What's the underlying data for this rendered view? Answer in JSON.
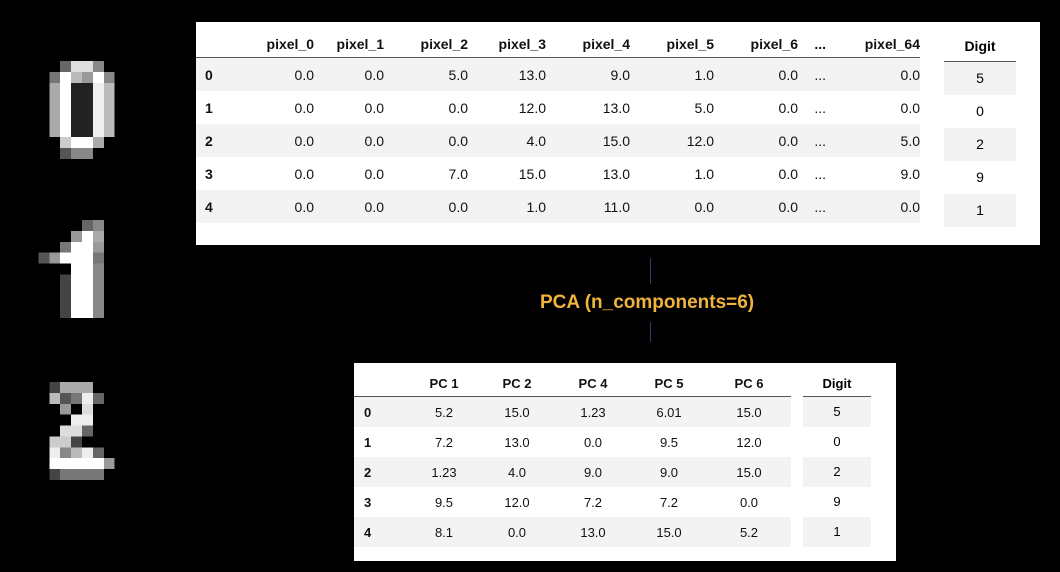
{
  "raw_table": {
    "columns": [
      "pixel_0",
      "pixel_1",
      "pixel_2",
      "pixel_3",
      "pixel_4",
      "pixel_5",
      "pixel_6",
      "...",
      "pixel_64"
    ],
    "rows": [
      {
        "index": "0",
        "values": [
          "0.0",
          "0.0",
          "5.0",
          "13.0",
          "9.0",
          "1.0",
          "0.0",
          "...",
          "0.0"
        ]
      },
      {
        "index": "1",
        "values": [
          "0.0",
          "0.0",
          "0.0",
          "12.0",
          "13.0",
          "5.0",
          "0.0",
          "...",
          "0.0"
        ]
      },
      {
        "index": "2",
        "values": [
          "0.0",
          "0.0",
          "0.0",
          "4.0",
          "15.0",
          "12.0",
          "0.0",
          "...",
          "5.0"
        ]
      },
      {
        "index": "3",
        "values": [
          "0.0",
          "0.0",
          "7.0",
          "15.0",
          "13.0",
          "1.0",
          "0.0",
          "...",
          "9.0"
        ]
      },
      {
        "index": "4",
        "values": [
          "0.0",
          "0.0",
          "0.0",
          "1.0",
          "11.0",
          "0.0",
          "0.0",
          "...",
          "0.0"
        ]
      }
    ],
    "digit_header": "Digit",
    "digits": [
      "5",
      "0",
      "2",
      "9",
      "1"
    ]
  },
  "pca_label": "PCA (n_components=6)",
  "pca_table": {
    "columns": [
      "PC 1",
      "PC 2",
      "PC 4",
      "PC 5",
      "PC 6"
    ],
    "rows": [
      {
        "index": "0",
        "values": [
          "5.2",
          "15.0",
          "1.23",
          "6.01",
          "15.0"
        ]
      },
      {
        "index": "1",
        "values": [
          "7.2",
          "13.0",
          "0.0",
          "9.5",
          "12.0"
        ]
      },
      {
        "index": "2",
        "values": [
          "1.23",
          "4.0",
          "9.0",
          "9.0",
          "15.0"
        ]
      },
      {
        "index": "3",
        "values": [
          "9.5",
          "12.0",
          "7.2",
          "7.2",
          "0.0"
        ]
      },
      {
        "index": "4",
        "values": [
          "8.1",
          "0.0",
          "13.0",
          "15.0",
          "5.2"
        ]
      }
    ],
    "digit_header": "Digit",
    "digits": [
      "5",
      "0",
      "2",
      "9",
      "1"
    ]
  },
  "digit_images": [
    "digit-zero-image",
    "digit-one-image",
    "digit-two-image"
  ]
}
